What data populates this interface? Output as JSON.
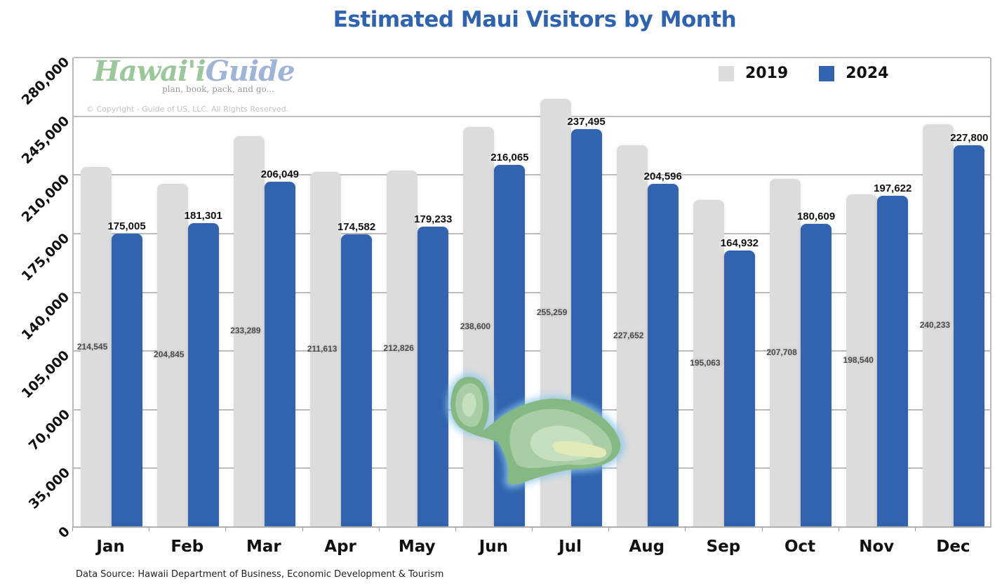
{
  "chart_data": {
    "type": "bar",
    "title": "Estimated Maui Visitors by Month",
    "xlabel": "",
    "ylabel": "",
    "categories": [
      "Jan",
      "Feb",
      "Mar",
      "Apr",
      "May",
      "Jun",
      "Jul",
      "Aug",
      "Sep",
      "Oct",
      "Nov",
      "Dec"
    ],
    "series": [
      {
        "name": "2019",
        "color": "#dcdcdc",
        "values": [
          214545,
          204845,
          233289,
          211613,
          212826,
          238600,
          255259,
          227652,
          195063,
          207708,
          198540,
          240233
        ]
      },
      {
        "name": "2024",
        "color": "#3163ae",
        "values": [
          175005,
          181301,
          206049,
          174582,
          179233,
          216065,
          237495,
          204596,
          164932,
          180609,
          197622,
          227800
        ]
      }
    ],
    "value_labels": {
      "2019": [
        "214,545",
        "204,845",
        "233,289",
        "211,613",
        "212,826",
        "238,600",
        "255,259",
        "227,652",
        "195,063",
        "207,708",
        "198,540",
        "240,233"
      ],
      "2024": [
        "175,005",
        "181,301",
        "206,049",
        "174,582",
        "179,233",
        "216,065",
        "237,495",
        "204,596",
        "164,932",
        "180,609",
        "197,622",
        "227,800"
      ]
    },
    "ylim": [
      0,
      280000
    ],
    "yticks": [
      0,
      35000,
      70000,
      105000,
      140000,
      175000,
      210000,
      245000,
      280000
    ],
    "ytick_labels": [
      "0",
      "35,000",
      "70,000",
      "105,000",
      "140,000",
      "175,000",
      "210,000",
      "245,000",
      "280,000"
    ],
    "grid": true,
    "legend_position": "top-right"
  },
  "header": {
    "title": "Estimated Maui Visitors by Month"
  },
  "legend": {
    "items": [
      {
        "label": "2019",
        "color": "#dcdcdc"
      },
      {
        "label": "2024",
        "color": "#3163ae"
      }
    ]
  },
  "watermark": {
    "logo_part1": "Hawai'i",
    "logo_part2": "Guide",
    "tagline": "plan, book, pack, and go...",
    "copyright": "© Copyright - Guide of US, LLC. All Rights Reserved."
  },
  "footer": {
    "source": "Data Source: Hawaii Department of Business, Economic Development & Tourism"
  },
  "colors": {
    "title": "#2f63ad",
    "series_2019": "#dcdcdc",
    "series_2024": "#3163ae",
    "grid": "#bdbdbd"
  }
}
